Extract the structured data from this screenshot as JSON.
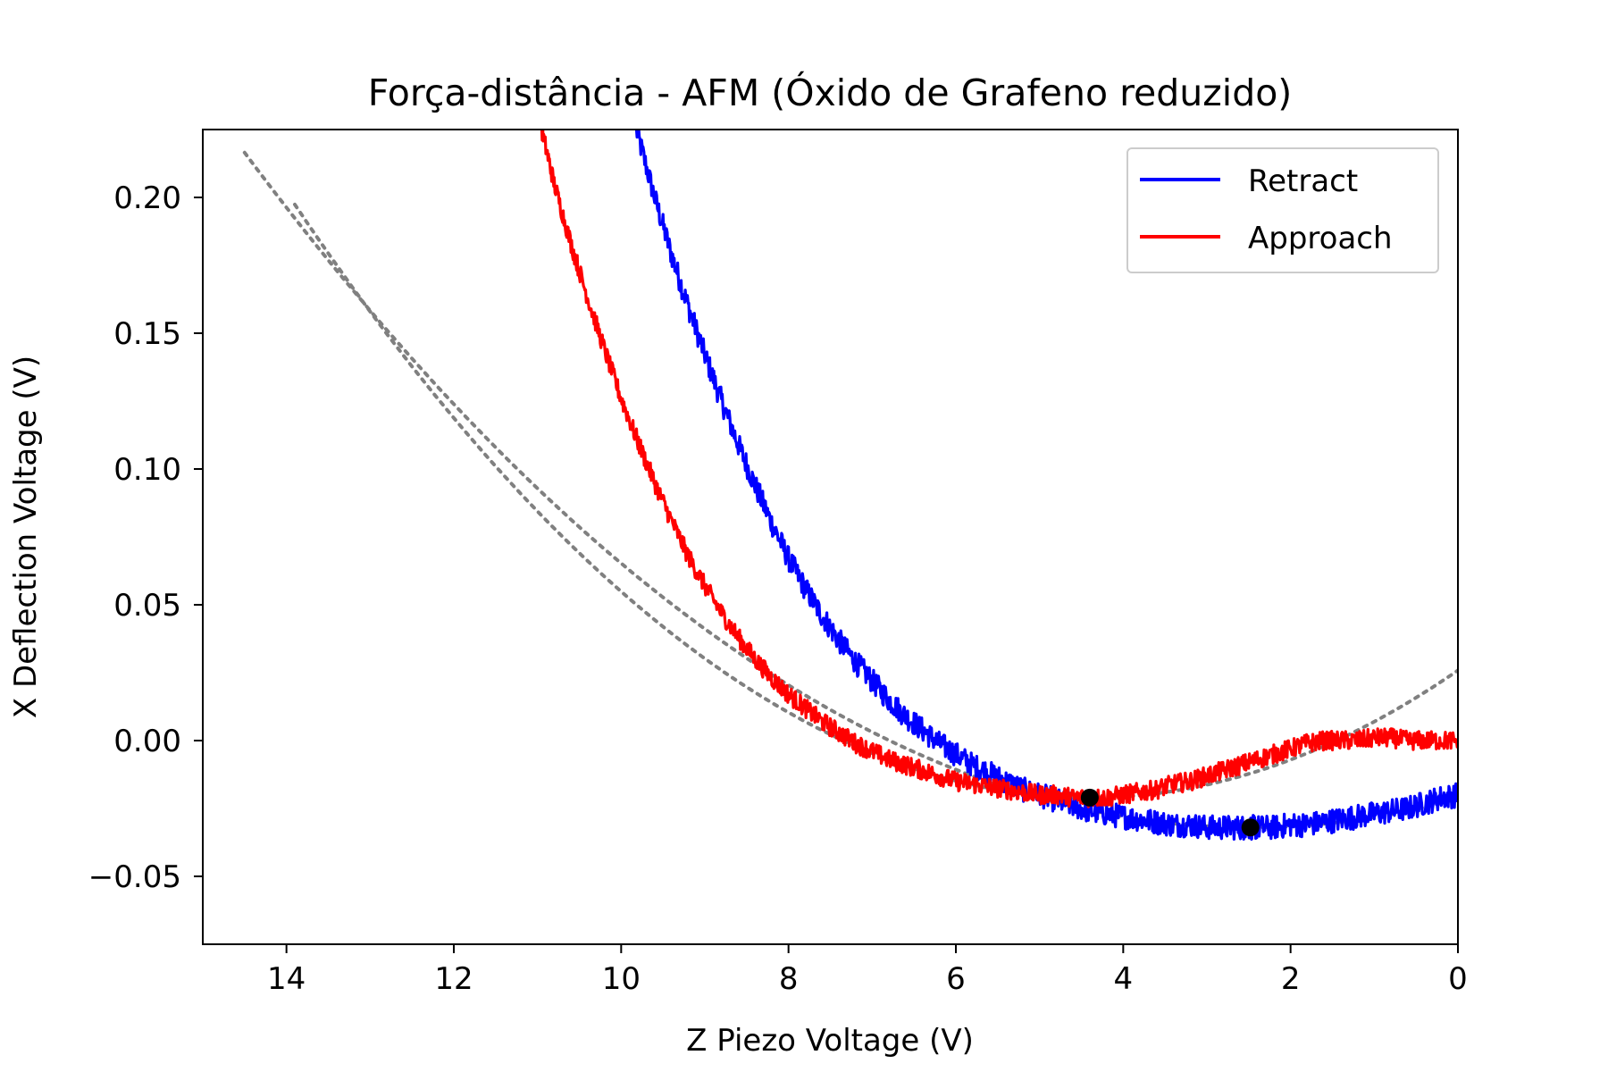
{
  "chart_data": {
    "type": "line",
    "title": "Força-distância - AFM (Óxido de Grafeno reduzido)",
    "xlabel": "Z Piezo Voltage (V)",
    "ylabel": "X Deflection Voltage (V)",
    "xlim": [
      15,
      0
    ],
    "ylim": [
      -0.075,
      0.225
    ],
    "x_ticks": [
      14,
      12,
      10,
      8,
      6,
      4,
      2,
      0
    ],
    "x_tick_labels": [
      "14",
      "12",
      "10",
      "8",
      "6",
      "4",
      "2",
      "0"
    ],
    "y_ticks": [
      0.2,
      0.15,
      0.1,
      0.05,
      0.0,
      -0.05
    ],
    "y_tick_labels": [
      "0.20",
      "0.15",
      "0.10",
      "0.05",
      "0.00",
      "−0.05"
    ],
    "grid": false,
    "legend_position": "top-right",
    "series": [
      {
        "name": "Retract",
        "color": "#0000ff",
        "noise": 0.0045,
        "x": [
          9.82,
          9.6,
          9.4,
          9.2,
          9.0,
          8.8,
          8.6,
          8.4,
          8.2,
          8.0,
          7.8,
          7.6,
          7.4,
          7.2,
          7.0,
          6.8,
          6.6,
          6.4,
          6.2,
          6.0,
          5.8,
          5.6,
          5.4,
          5.2,
          5.0,
          4.8,
          4.6,
          4.4,
          4.2,
          4.0,
          3.8,
          3.6,
          3.4,
          3.2,
          3.0,
          2.8,
          2.6,
          2.48,
          2.4,
          2.2,
          2.0,
          1.8,
          1.6,
          1.4,
          1.2,
          1.0,
          0.8,
          0.6,
          0.4,
          0.2,
          0.0
        ],
        "y": [
          0.225,
          0.2,
          0.179,
          0.16,
          0.142,
          0.125,
          0.109,
          0.094,
          0.08,
          0.067,
          0.056,
          0.046,
          0.037,
          0.029,
          0.022,
          0.015,
          0.009,
          0.004,
          -0.001,
          -0.005,
          -0.009,
          -0.012,
          -0.015,
          -0.018,
          -0.02,
          -0.022,
          -0.024,
          -0.026,
          -0.027,
          -0.028,
          -0.029,
          -0.03,
          -0.031,
          -0.031,
          -0.032,
          -0.032,
          -0.032,
          -0.032,
          -0.032,
          -0.032,
          -0.031,
          -0.031,
          -0.03,
          -0.029,
          -0.028,
          -0.027,
          -0.026,
          -0.025,
          -0.023,
          -0.021,
          -0.02
        ]
      },
      {
        "name": "Approach",
        "color": "#ff0000",
        "noise": 0.0035,
        "x": [
          10.95,
          10.8,
          10.6,
          10.4,
          10.2,
          10.0,
          9.8,
          9.6,
          9.4,
          9.2,
          9.0,
          8.8,
          8.6,
          8.4,
          8.2,
          8.0,
          7.8,
          7.6,
          7.4,
          7.2,
          7.0,
          6.8,
          6.6,
          6.4,
          6.2,
          6.0,
          5.8,
          5.6,
          5.4,
          5.2,
          5.0,
          4.8,
          4.6,
          4.4,
          4.2,
          4.0,
          3.8,
          3.6,
          3.4,
          3.2,
          3.0,
          2.8,
          2.6,
          2.4,
          2.2,
          2.0,
          1.8,
          1.6,
          1.4,
          1.2,
          1.0,
          0.8,
          0.6,
          0.4,
          0.2,
          0.0
        ],
        "y": [
          0.225,
          0.205,
          0.183,
          0.163,
          0.144,
          0.126,
          0.11,
          0.095,
          0.081,
          0.068,
          0.057,
          0.047,
          0.038,
          0.03,
          0.023,
          0.017,
          0.012,
          0.007,
          0.003,
          -0.001,
          -0.004,
          -0.007,
          -0.009,
          -0.011,
          -0.013,
          -0.015,
          -0.016,
          -0.017,
          -0.018,
          -0.019,
          -0.02,
          -0.02,
          -0.021,
          -0.021,
          -0.021,
          -0.02,
          -0.019,
          -0.018,
          -0.016,
          -0.015,
          -0.013,
          -0.011,
          -0.009,
          -0.007,
          -0.005,
          -0.003,
          -0.001,
          0.0,
          0.0,
          0.0,
          0.001,
          0.001,
          0.0,
          0.0,
          0.0,
          0.0
        ]
      }
    ],
    "fit_curves": [
      {
        "color": "#808080",
        "style": "dotted",
        "vertex_x": 2.48,
        "vertex_y": -0.032,
        "coefficient": 0.00172,
        "x_start": 14.5,
        "x_end": 0.0
      },
      {
        "color": "#808080",
        "style": "dotted",
        "vertex_x": 4.4,
        "vertex_y": -0.021,
        "coefficient": 0.00242,
        "x_start": 13.9,
        "x_end": 0.0
      }
    ],
    "markers": [
      {
        "x": 4.4,
        "y": -0.021,
        "color": "#000000"
      },
      {
        "x": 2.48,
        "y": -0.032,
        "color": "#000000"
      }
    ]
  }
}
